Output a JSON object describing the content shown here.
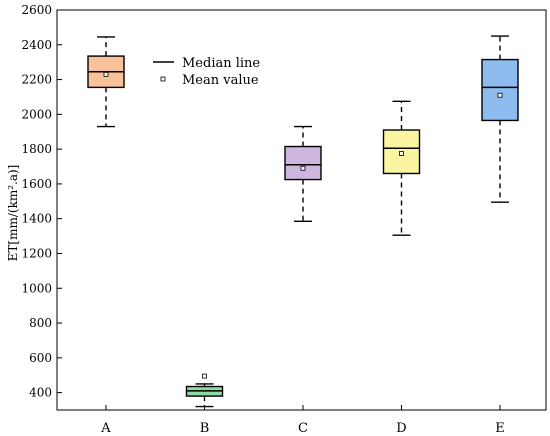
{
  "chart_data": {
    "type": "box",
    "ylabel": "ET[mm/(km².a)]",
    "ylim": [
      300,
      2600
    ],
    "yticks": [
      400,
      600,
      800,
      1000,
      1200,
      1400,
      1600,
      1800,
      2000,
      2200,
      2400,
      2600
    ],
    "categories": [
      "A",
      "B",
      "C",
      "D",
      "E"
    ],
    "boxes": [
      {
        "category": "A",
        "whisker_low": 1930,
        "q1": 2155,
        "median": 2245,
        "q3": 2335,
        "whisker_high": 2445,
        "mean": 2230,
        "color": "#f8c39b"
      },
      {
        "category": "B",
        "whisker_low": 320,
        "q1": 380,
        "median": 410,
        "q3": 435,
        "whisker_high": 450,
        "mean": 495,
        "color": "#8fd9a4"
      },
      {
        "category": "C",
        "whisker_low": 1385,
        "q1": 1625,
        "median": 1710,
        "q3": 1815,
        "whisker_high": 1930,
        "mean": 1690,
        "color": "#cdb7de"
      },
      {
        "category": "D",
        "whisker_low": 1305,
        "q1": 1660,
        "median": 1805,
        "q3": 1910,
        "whisker_high": 2075,
        "mean": 1775,
        "color": "#fbf5a2"
      },
      {
        "category": "E",
        "whisker_low": 1495,
        "q1": 1965,
        "median": 2155,
        "q3": 2315,
        "whisker_high": 2450,
        "mean": 2110,
        "color": "#8fbcef"
      }
    ],
    "legend": {
      "position": "top-left",
      "median_label": "Median line",
      "mean_label": "Mean value"
    },
    "grid": false
  }
}
